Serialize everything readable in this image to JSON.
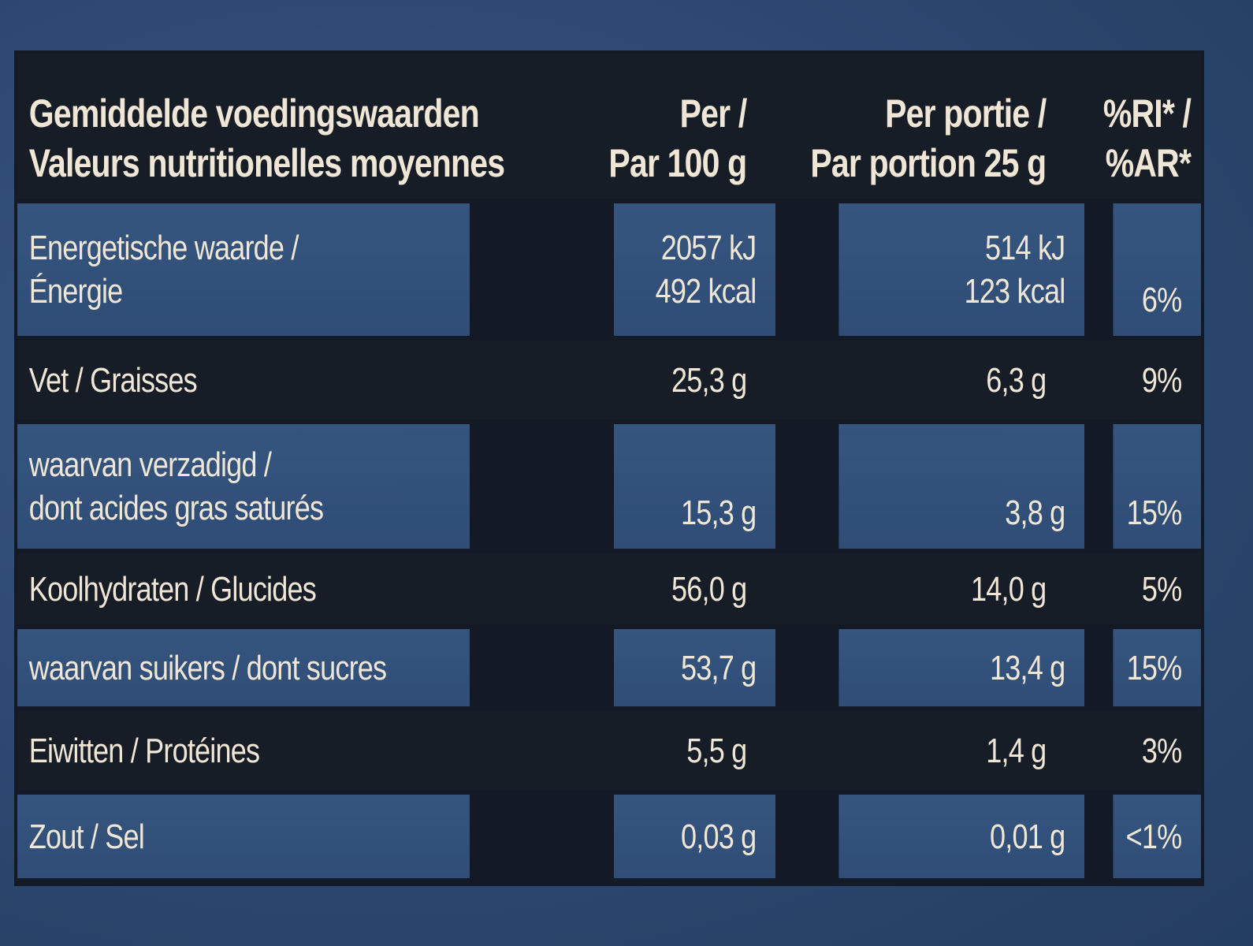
{
  "table": {
    "header": {
      "col1_line1": "Gemiddelde voedingswaarden",
      "col1_line2": "Valeurs nutritionelles moyennes",
      "col2_line1": "Per /",
      "col2_line2": "Par 100 g",
      "col3_line1": "Per portie /",
      "col3_line2": "Par portion 25 g",
      "col4_line1": "%RI* /",
      "col4_line2": "%AR*"
    },
    "rows": [
      {
        "label_line1": "Energetische waarde /",
        "label_line2": "Énergie",
        "per100_line1": "2057 kJ",
        "per100_line2": "492 kcal",
        "portion_line1": "514 kJ",
        "portion_line2": "123 kcal",
        "ri": "6%"
      },
      {
        "label": "Vet / Graisses",
        "per100": "25,3 g",
        "portion": "6,3 g",
        "ri": "9%"
      },
      {
        "label_line1": "waarvan verzadigd /",
        "label_line2": "dont acides gras saturés",
        "per100": "15,3 g",
        "portion": "3,8 g",
        "ri": "15%"
      },
      {
        "label": "Koolhydraten / Glucides",
        "per100": "56,0 g",
        "portion": "14,0 g",
        "ri": "5%"
      },
      {
        "label": "waarvan suikers / dont sucres",
        "per100": "53,7 g",
        "portion": "13,4 g",
        "ri": "15%"
      },
      {
        "label": "Eiwitten / Protéines",
        "per100": "5,5 g",
        "portion": "1,4 g",
        "ri": "3%"
      },
      {
        "label": "Zout / Sel",
        "per100": "0,03 g",
        "portion": "0,01 g",
        "ri": "<1%"
      }
    ]
  }
}
